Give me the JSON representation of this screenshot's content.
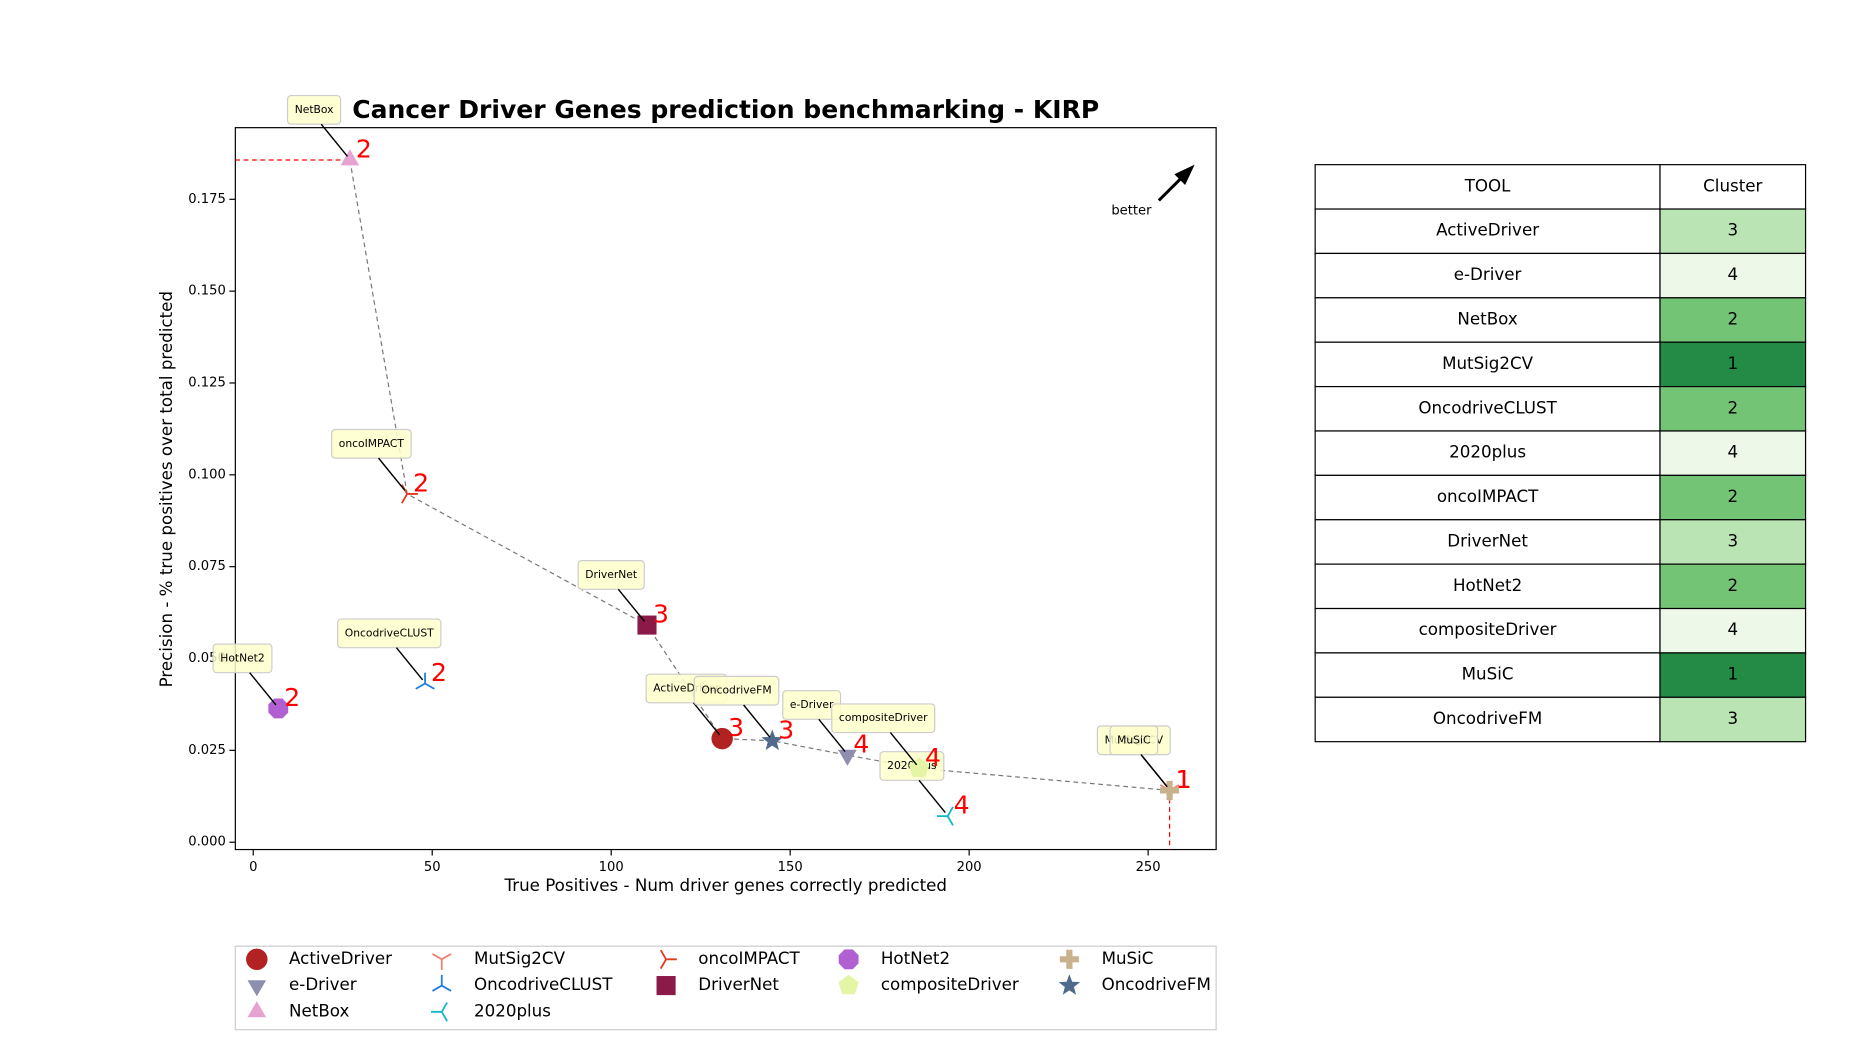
{
  "chart_data": {
    "type": "scatter",
    "title": "Cancer Driver Genes prediction benchmarking - KIRP",
    "x_label": "True Positives - Num driver genes correctly predicted",
    "y_label": "Precision - % true positives over total predicted",
    "annotation": "better",
    "xlim": [
      -5,
      269
    ],
    "ylim": [
      -0.002,
      0.1945
    ],
    "xticks": [
      0,
      50,
      100,
      150,
      200,
      250
    ],
    "yticks": [
      {
        "value": 0,
        "label": "0.000"
      },
      {
        "value": 0.025,
        "label": "0.025"
      },
      {
        "value": 0.05,
        "label": "0.050"
      },
      {
        "value": 0.075,
        "label": "0.075"
      },
      {
        "value": 0.1,
        "label": "0.100"
      },
      {
        "value": 0.125,
        "label": "0.125"
      },
      {
        "value": 0.15,
        "label": "0.150"
      },
      {
        "value": 0.175,
        "label": "0.175"
      }
    ],
    "series": [
      {
        "name": "ActiveDriver",
        "color": "#b22222",
        "marker": "o",
        "x": [
          131
        ],
        "values": [
          0.0282
        ],
        "cluster": 3
      },
      {
        "name": "e-Driver",
        "color": "#8e8eae",
        "marker": "v",
        "x": [
          166
        ],
        "values": [
          0.0237
        ],
        "cluster": 4
      },
      {
        "name": "NetBox",
        "color": "#e6a3d2",
        "marker": "^",
        "x": [
          27
        ],
        "values": [
          0.1857
        ],
        "cluster": 2
      },
      {
        "name": "MutSig2CV",
        "color": "#f08070",
        "marker": "1",
        "x": [
          256
        ],
        "values": [
          0.0141
        ],
        "cluster": 1
      },
      {
        "name": "OncodriveCLUST",
        "color": "#1e7fe0",
        "marker": "2",
        "x": [
          48
        ],
        "values": [
          0.0432
        ],
        "cluster": 2
      },
      {
        "name": "2020plus",
        "color": "#10b8c8",
        "marker": "3",
        "x": [
          194
        ],
        "values": [
          0.0071
        ],
        "cluster": 4
      },
      {
        "name": "oncoIMPACT",
        "color": "#e03a1e",
        "marker": "4",
        "x": [
          43
        ],
        "values": [
          0.0948
        ],
        "cluster": 2
      },
      {
        "name": "DriverNet",
        "color": "#8b1a48",
        "marker": "s",
        "x": [
          110
        ],
        "values": [
          0.0591
        ],
        "cluster": 3
      },
      {
        "name": "HotNet2",
        "color": "#b060d0",
        "marker": "8",
        "x": [
          7
        ],
        "values": [
          0.0364
        ],
        "cluster": 2
      },
      {
        "name": "compositeDriver",
        "color": "#e4f5a6",
        "marker": "p",
        "x": [
          186
        ],
        "values": [
          0.0201
        ],
        "cluster": 4
      },
      {
        "name": "MuSiC",
        "color": "#c8b28e",
        "marker": "P",
        "x": [
          256
        ],
        "values": [
          0.0141
        ],
        "cluster": 1
      },
      {
        "name": "OncodriveFM",
        "color": "#4f6a8a",
        "marker": "*",
        "x": [
          145
        ],
        "values": [
          0.0276
        ],
        "cluster": 3
      }
    ]
  },
  "table": {
    "columns": [
      "TOOL",
      "Cluster"
    ],
    "cluster_colors": {
      "1": "#238b45",
      "2": "#74c476",
      "3": "#bae4b3",
      "4": "#edf8e9"
    }
  }
}
